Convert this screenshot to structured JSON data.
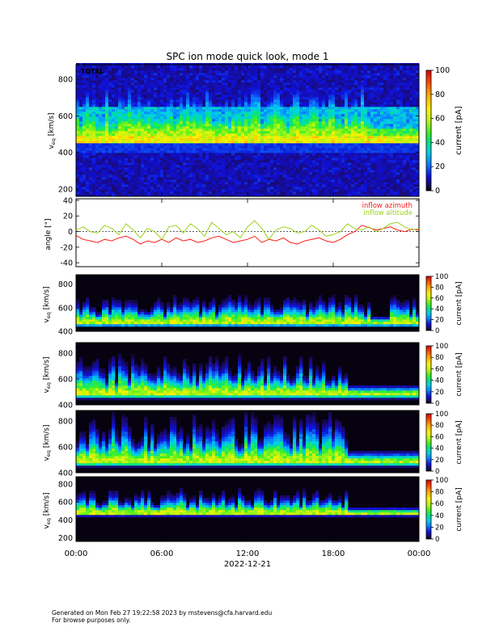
{
  "title": "SPC ion mode quick look, mode 1",
  "footer": {
    "line1": "Generated on Mon Feb 27 19:22:58 2023 by mstevens@cfa.harvard.edu",
    "line2": "For browse purposes only."
  },
  "colors": {
    "azimuth": "#ff1a1a",
    "altitude": "#9bd21a"
  },
  "colorbar": {
    "label": "current [pA]",
    "ticks": [
      0,
      20,
      40,
      60,
      80,
      100
    ],
    "range": [
      0,
      100
    ]
  },
  "chart_data": [
    {
      "type": "heatmap",
      "id": "panel-total",
      "tag": "TOTAL",
      "ylabel": "v",
      "ylabel_sub": "eq",
      "ylabel_unit": " [km/s]",
      "ylim": [
        160,
        880
      ],
      "yticks": [
        200,
        400,
        600,
        800
      ],
      "xrange_hours": [
        0,
        24
      ],
      "core_kms": 470,
      "spread_kms": 150,
      "quiet_hours": [
        20.5,
        24
      ]
    },
    {
      "type": "line",
      "id": "panel-angle",
      "ylabel": "angle [°]",
      "ylim": [
        -45,
        42
      ],
      "yticks": [
        -40,
        -20,
        0,
        20,
        40
      ],
      "xrange_hours": [
        0,
        24
      ],
      "legend": [
        "inflow azimuth",
        "inflow altitude"
      ],
      "legend_position": "top-right",
      "series": [
        {
          "name": "inflow azimuth",
          "x_hours": [
            0,
            0.5,
            1,
            1.5,
            2,
            2.5,
            3,
            3.5,
            4,
            4.5,
            5,
            5.5,
            6,
            6.5,
            7,
            7.5,
            8,
            8.5,
            9,
            9.5,
            10,
            10.5,
            11,
            11.5,
            12,
            12.5,
            13,
            13.5,
            14,
            14.5,
            15,
            15.5,
            16,
            16.5,
            17,
            17.5,
            18,
            18.5,
            19,
            19.5,
            20,
            20.5,
            21,
            21.5,
            22,
            22.5,
            23,
            23.5,
            24
          ],
          "values": [
            -5,
            -10,
            -12,
            -14,
            -10,
            -12,
            -8,
            -6,
            -10,
            -16,
            -12,
            -14,
            -10,
            -14,
            -8,
            -12,
            -10,
            -14,
            -12,
            -8,
            -6,
            -10,
            -14,
            -12,
            -10,
            -6,
            -14,
            -10,
            -12,
            -8,
            -14,
            -16,
            -12,
            -10,
            -8,
            -12,
            -14,
            -10,
            -4,
            0,
            8,
            5,
            2,
            4,
            6,
            2,
            0,
            3,
            2
          ]
        },
        {
          "name": "inflow altitude",
          "x_hours": [
            0,
            0.5,
            1,
            1.5,
            2,
            2.5,
            3,
            3.5,
            4,
            4.5,
            5,
            5.5,
            6,
            6.5,
            7,
            7.5,
            8,
            8.5,
            9,
            9.5,
            10,
            10.5,
            11,
            11.5,
            12,
            12.5,
            13,
            13.5,
            14,
            14.5,
            15,
            15.5,
            16,
            16.5,
            17,
            17.5,
            18,
            18.5,
            19,
            19.5,
            20,
            20.5,
            21,
            21.5,
            22,
            22.5,
            23,
            23.5,
            24
          ],
          "values": [
            2,
            6,
            0,
            -2,
            8,
            4,
            -4,
            10,
            2,
            -8,
            4,
            0,
            -10,
            6,
            8,
            -2,
            10,
            4,
            -6,
            12,
            4,
            -4,
            0,
            -8,
            6,
            14,
            4,
            -10,
            2,
            6,
            4,
            -2,
            0,
            8,
            2,
            -6,
            -4,
            0,
            10,
            4,
            2,
            6,
            0,
            4,
            10,
            12,
            6,
            2,
            4
          ]
        }
      ]
    },
    {
      "type": "heatmap",
      "id": "panel-1",
      "ylabel": "v",
      "ylabel_sub": "eq",
      "ylabel_unit": " [km/s]",
      "ylim": [
        400,
        880
      ],
      "yticks": [
        400,
        600,
        800
      ],
      "xrange_hours": [
        0,
        24
      ],
      "core_kms": 470,
      "spread_kms": 90,
      "quiet_hours": [
        20.5,
        22
      ]
    },
    {
      "type": "heatmap",
      "id": "panel-2",
      "ylabel": "v",
      "ylabel_sub": "eq",
      "ylabel_unit": " [km/s]",
      "ylim": [
        400,
        880
      ],
      "yticks": [
        400,
        600,
        800
      ],
      "xrange_hours": [
        0,
        24
      ],
      "core_kms": 480,
      "spread_kms": 120,
      "quiet_hours": [
        19,
        24
      ]
    },
    {
      "type": "heatmap",
      "id": "panel-3",
      "ylabel": "v",
      "ylabel_sub": "eq",
      "ylabel_unit": " [km/s]",
      "ylim": [
        400,
        880
      ],
      "yticks": [
        400,
        600,
        800
      ],
      "xrange_hours": [
        0,
        24
      ],
      "core_kms": 480,
      "spread_kms": 150,
      "quiet_hours": [
        19,
        24
      ]
    },
    {
      "type": "heatmap",
      "id": "panel-4",
      "ylabel": "v",
      "ylabel_sub": "eq",
      "ylabel_unit": " [km/s]",
      "ylim": [
        160,
        880
      ],
      "yticks": [
        200,
        400,
        600,
        800
      ],
      "xrange_hours": [
        0,
        24
      ],
      "core_kms": 470,
      "spread_kms": 110,
      "quiet_hours": [
        19,
        24
      ]
    }
  ],
  "xaxis": {
    "tick_labels": [
      "00:00",
      "06:00",
      "12:00",
      "18:00",
      "00:00"
    ],
    "tick_hours": [
      0,
      6,
      12,
      18,
      24
    ],
    "date_label": "2022-12-21"
  }
}
